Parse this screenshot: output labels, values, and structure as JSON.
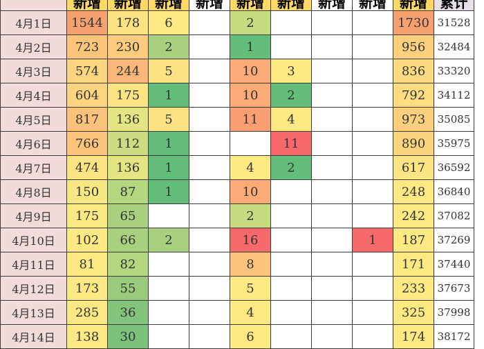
{
  "headers": [
    "",
    "新增",
    "新增",
    "新增",
    "新增",
    "新增",
    "新增",
    "新增",
    "新增",
    "新增",
    "累计"
  ],
  "header_colors": [
    "#f2dcdb",
    "#ffd966",
    "#ffd966",
    "#ffd966",
    "#ffffff",
    "#ffd966",
    "#ffd966",
    "#ffffff",
    "#ffffff",
    "#ffd966",
    "#e6e0ec"
  ],
  "rows": [
    {
      "cells": [
        "4月1日",
        "1544",
        "178",
        "6",
        "",
        "2",
        "",
        "",
        "",
        "1730",
        "31528"
      ],
      "colors": [
        "#f2dcdb",
        "#f8a170",
        "#fce283",
        "#fde983",
        "#ffffff",
        "#c6db7f",
        "#ffffff",
        "#ffffff",
        "#ffffff",
        "#f8a170",
        "#ffffff"
      ]
    },
    {
      "cells": [
        "4月2日",
        "723",
        "230",
        "2",
        "",
        "1",
        "",
        "",
        "",
        "956",
        "32484"
      ],
      "colors": [
        "#f2dcdb",
        "#fcc57a",
        "#fccb7d",
        "#a8d07f",
        "#ffffff",
        "#63be7b",
        "#ffffff",
        "#ffffff",
        "#ffffff",
        "#fcd07d",
        "#ffffff"
      ]
    },
    {
      "cells": [
        "4月3日",
        "574",
        "244",
        "5",
        "",
        "10",
        "3",
        "",
        "",
        "836",
        "33320"
      ],
      "colors": [
        "#f2dcdb",
        "#fdd581",
        "#fbb77a",
        "#fce283",
        "#ffffff",
        "#fbac76",
        "#fee983",
        "#ffffff",
        "#ffffff",
        "#fddb81",
        "#ffffff"
      ]
    },
    {
      "cells": [
        "4月4日",
        "604",
        "175",
        "1",
        "",
        "10",
        "2",
        "",
        "",
        "792",
        "34112"
      ],
      "colors": [
        "#f2dcdb",
        "#fdd581",
        "#fde483",
        "#63be7b",
        "#ffffff",
        "#fbac76",
        "#63be7b",
        "#ffffff",
        "#ffffff",
        "#fedd81",
        "#ffffff"
      ]
    },
    {
      "cells": [
        "4月5日",
        "817",
        "136",
        "5",
        "",
        "11",
        "4",
        "",
        "",
        "973",
        "35085"
      ],
      "colors": [
        "#f2dcdb",
        "#fcc17a",
        "#e3e482",
        "#fce283",
        "#ffffff",
        "#fa9e73",
        "#fee983",
        "#ffffff",
        "#ffffff",
        "#fcd07d",
        "#ffffff"
      ]
    },
    {
      "cells": [
        "4月6日",
        "766",
        "112",
        "1",
        "",
        "",
        "11",
        "",
        "",
        "890",
        "35975"
      ],
      "colors": [
        "#f2dcdb",
        "#fcc57a",
        "#cbdd80",
        "#63be7b",
        "#ffffff",
        "#ffffff",
        "#f8696b",
        "#ffffff",
        "#ffffff",
        "#fcd47e",
        "#ffffff"
      ]
    },
    {
      "cells": [
        "4月7日",
        "474",
        "136",
        "1",
        "",
        "4",
        "2",
        "",
        "",
        "617",
        "36592"
      ],
      "colors": [
        "#f2dcdb",
        "#fee583",
        "#e3e482",
        "#63be7b",
        "#ffffff",
        "#fee983",
        "#63be7b",
        "#ffffff",
        "#ffffff",
        "#fee583",
        "#ffffff"
      ]
    },
    {
      "cells": [
        "4月8日",
        "150",
        "87",
        "1",
        "",
        "10",
        "",
        "",
        "",
        "248",
        "36840"
      ],
      "colors": [
        "#f2dcdb",
        "#f7e883",
        "#b3d67f",
        "#63be7b",
        "#ffffff",
        "#fbac76",
        "#ffffff",
        "#ffffff",
        "#ffffff",
        "#fee983",
        "#ffffff"
      ]
    },
    {
      "cells": [
        "4月9日",
        "175",
        "65",
        "",
        "",
        "2",
        "",
        "",
        "",
        "242",
        "37082"
      ],
      "colors": [
        "#f2dcdb",
        "#fde983",
        "#a8d07f",
        "#ffffff",
        "#ffffff",
        "#c6db7f",
        "#ffffff",
        "#ffffff",
        "#ffffff",
        "#fee983",
        "#ffffff"
      ]
    },
    {
      "cells": [
        "4月10日",
        "102",
        "66",
        "2",
        "",
        "16",
        "",
        "",
        "1",
        "187",
        "37269"
      ],
      "colors": [
        "#f2dcdb",
        "#fee983",
        "#a8d07f",
        "#a8d07f",
        "#ffffff",
        "#f8696b",
        "#ffffff",
        "#ffffff",
        "#f8696b",
        "#fee983",
        "#ffffff"
      ]
    },
    {
      "cells": [
        "4月11日",
        "81",
        "82",
        "",
        "",
        "8",
        "",
        "",
        "",
        "171",
        "37440"
      ],
      "colors": [
        "#f2dcdb",
        "#fee983",
        "#b3d67f",
        "#ffffff",
        "#ffffff",
        "#fdc47d",
        "#ffffff",
        "#ffffff",
        "#ffffff",
        "#fee983",
        "#ffffff"
      ]
    },
    {
      "cells": [
        "4月12日",
        "173",
        "55",
        "",
        "",
        "5",
        "",
        "",
        "",
        "233",
        "37673"
      ],
      "colors": [
        "#f2dcdb",
        "#fde983",
        "#9acb7d",
        "#ffffff",
        "#ffffff",
        "#fee983",
        "#ffffff",
        "#ffffff",
        "#ffffff",
        "#fee983",
        "#ffffff"
      ]
    },
    {
      "cells": [
        "4月13日",
        "285",
        "36",
        "",
        "",
        "4",
        "",
        "",
        "",
        "325",
        "37998"
      ],
      "colors": [
        "#f2dcdb",
        "#fde983",
        "#83c47c",
        "#ffffff",
        "#ffffff",
        "#fee983",
        "#ffffff",
        "#ffffff",
        "#ffffff",
        "#fee983",
        "#ffffff"
      ]
    },
    {
      "cells": [
        "4月14日",
        "138",
        "30",
        "",
        "",
        "6",
        "",
        "",
        "",
        "174",
        "38172"
      ],
      "colors": [
        "#f2dcdb",
        "#fde983",
        "#7ac17c",
        "#ffffff",
        "#ffffff",
        "#fee983",
        "#ffffff",
        "#ffffff",
        "#ffffff",
        "#fee983",
        "#ffffff"
      ]
    }
  ]
}
